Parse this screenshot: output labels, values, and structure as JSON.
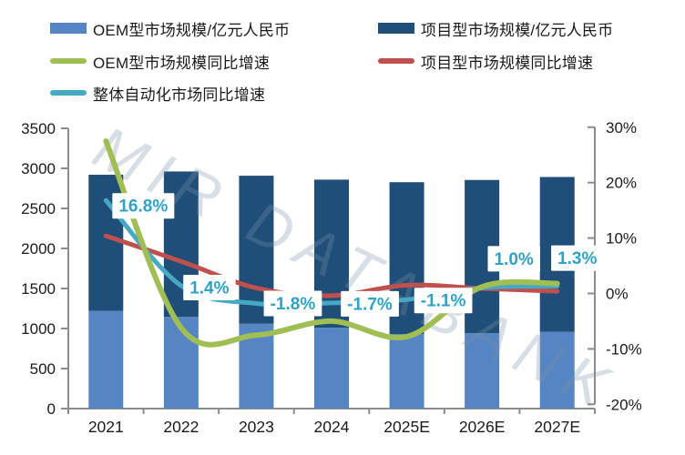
{
  "legend": {
    "items": [
      {
        "label": "OEM型市场规模/亿元人民币",
        "type": "bar",
        "color": "#5585C2"
      },
      {
        "label": "项目型市场规模/亿元人民币",
        "type": "bar",
        "color": "#1F4E79"
      },
      {
        "label": "OEM型市场规模同比增速",
        "type": "line",
        "color": "#A1BE55"
      },
      {
        "label": "项目型市场规模同比增速",
        "type": "line",
        "color": "#C0504D"
      },
      {
        "label": "整体自动化市场同比增速",
        "type": "line",
        "color": "#45A9C5"
      }
    ]
  },
  "watermark": {
    "text": "MIR DATABANK"
  },
  "chart_data": {
    "type": "bar+line combo, stacked bars on left axis, growth lines on right axis",
    "categories": [
      "2021",
      "2022",
      "2023",
      "2024",
      "2025E",
      "2026E",
      "2027E"
    ],
    "bar_series": [
      {
        "name": "OEM型市场规模/亿元人民币",
        "axis": "left",
        "stack": "total",
        "color": "#5585C2",
        "values": [
          1220,
          1145,
          1060,
          1010,
          930,
          941,
          958
        ]
      },
      {
        "name": "项目型市场规模/亿元人民币",
        "axis": "left",
        "stack": "total",
        "color": "#1F4E79",
        "values": [
          1700,
          1816,
          1848,
          1849,
          1897,
          1914,
          1934
        ]
      }
    ],
    "line_series": [
      {
        "name": "项目型市场规模同比增速",
        "axis": "right",
        "color": "#C0504D",
        "values": [
          10.4,
          5.8,
          1.0,
          -0.4,
          1.5,
          0.9,
          0.4
        ]
      },
      {
        "name": "整体自动化市场同比增速",
        "axis": "right",
        "color": "#45A9C5",
        "values": [
          16.8,
          1.4,
          -1.8,
          -1.7,
          -1.1,
          1.0,
          1.3
        ],
        "labels": [
          "16.8%",
          "1.4%",
          "-1.8%",
          "-1.7%",
          "-1.1%",
          "1.0%",
          "1.3%"
        ]
      },
      {
        "name": "OEM型市场规模同比增速",
        "axis": "right",
        "color": "#A1BE55",
        "values": [
          27.5,
          -6.2,
          -7.5,
          -5.0,
          -7.8,
          1.2,
          1.8
        ]
      }
    ],
    "left_axis": {
      "min": 0,
      "max": 3500,
      "step": 500,
      "ticks": [
        "0",
        "500",
        "1000",
        "1500",
        "2000",
        "2500",
        "3000",
        "3500"
      ]
    },
    "right_axis": {
      "min": -20,
      "max": 30,
      "step": 10,
      "ticks": [
        "-20%",
        "-10%",
        "0%",
        "10%",
        "20%",
        "30%"
      ]
    },
    "grid": "off",
    "legend_position": "top-left, two columns",
    "label_color": "#2FA2C5",
    "axis_color": "#8C8C8C",
    "tick_label_color": "#1a1a1a"
  }
}
